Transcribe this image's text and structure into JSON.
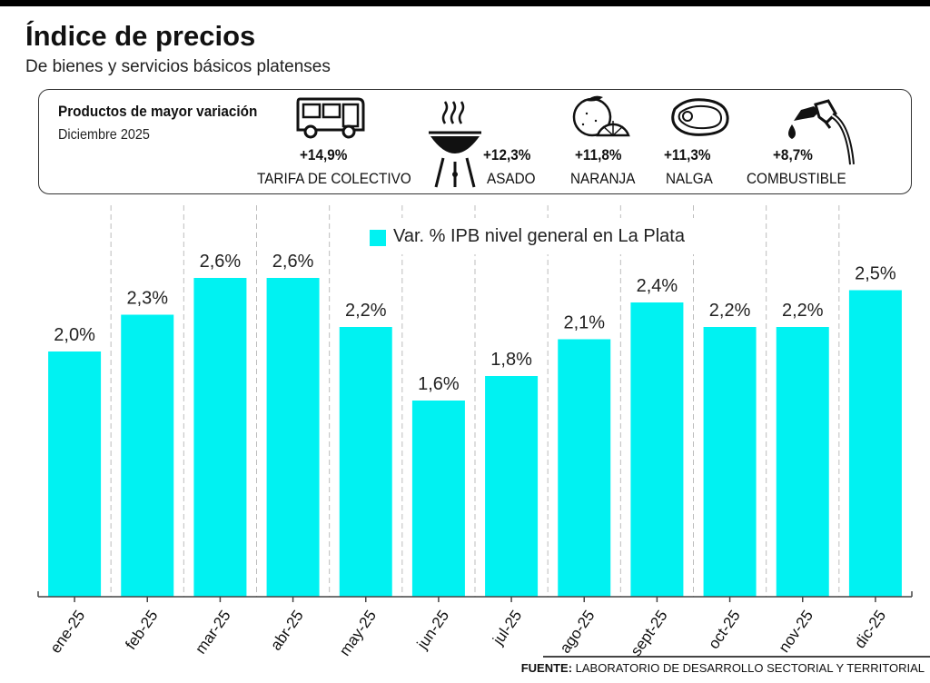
{
  "header": {
    "title": "Índice de precios",
    "subtitle": "De bienes y servicios básicos platenses"
  },
  "highlight": {
    "heading": "Productos de mayor variación",
    "date": "Diciembre 2025",
    "products": [
      {
        "pct": "+14,9%",
        "name": "TARIFA DE COLECTIVO",
        "icon": "bus-icon"
      },
      {
        "pct": "+12,3%",
        "name": "ASADO",
        "icon": "grill-icon"
      },
      {
        "pct": "+11,8%",
        "name": "NARANJA",
        "icon": "orange-icon"
      },
      {
        "pct": "+11,3%",
        "name": "NALGA",
        "icon": "steak-icon"
      },
      {
        "pct": "+8,7%",
        "name": "COMBUSTIBLE",
        "icon": "fuel-nozzle-icon"
      }
    ]
  },
  "chart_data": {
    "type": "bar",
    "title": "Índice de precios",
    "categories": [
      "ene-25",
      "feb-25",
      "mar-25",
      "abr-25",
      "may-25",
      "jun-25",
      "jul-25",
      "ago-25",
      "sept-25",
      "oct-25",
      "nov-25",
      "dic-25"
    ],
    "values": [
      2.0,
      2.3,
      2.6,
      2.6,
      2.2,
      1.6,
      1.8,
      2.1,
      2.4,
      2.2,
      2.2,
      2.5
    ],
    "value_labels": [
      "2,0%",
      "2,3%",
      "2,6%",
      "2,6%",
      "2,2%",
      "1,6%",
      "1,8%",
      "2,1%",
      "2,4%",
      "2,2%",
      "2,2%",
      "2,5%"
    ],
    "series_name": "Var. % IPB nivel general en La Plata",
    "xlabel": "",
    "ylabel": "",
    "ylim": [
      0,
      2.6
    ],
    "grid": false,
    "legend": "top-center",
    "bar_color": "#00f2f2"
  },
  "source": {
    "label": "FUENTE:",
    "text": "LABORATORIO DE DESARROLLO SECTORIAL Y TERRITORIAL"
  }
}
